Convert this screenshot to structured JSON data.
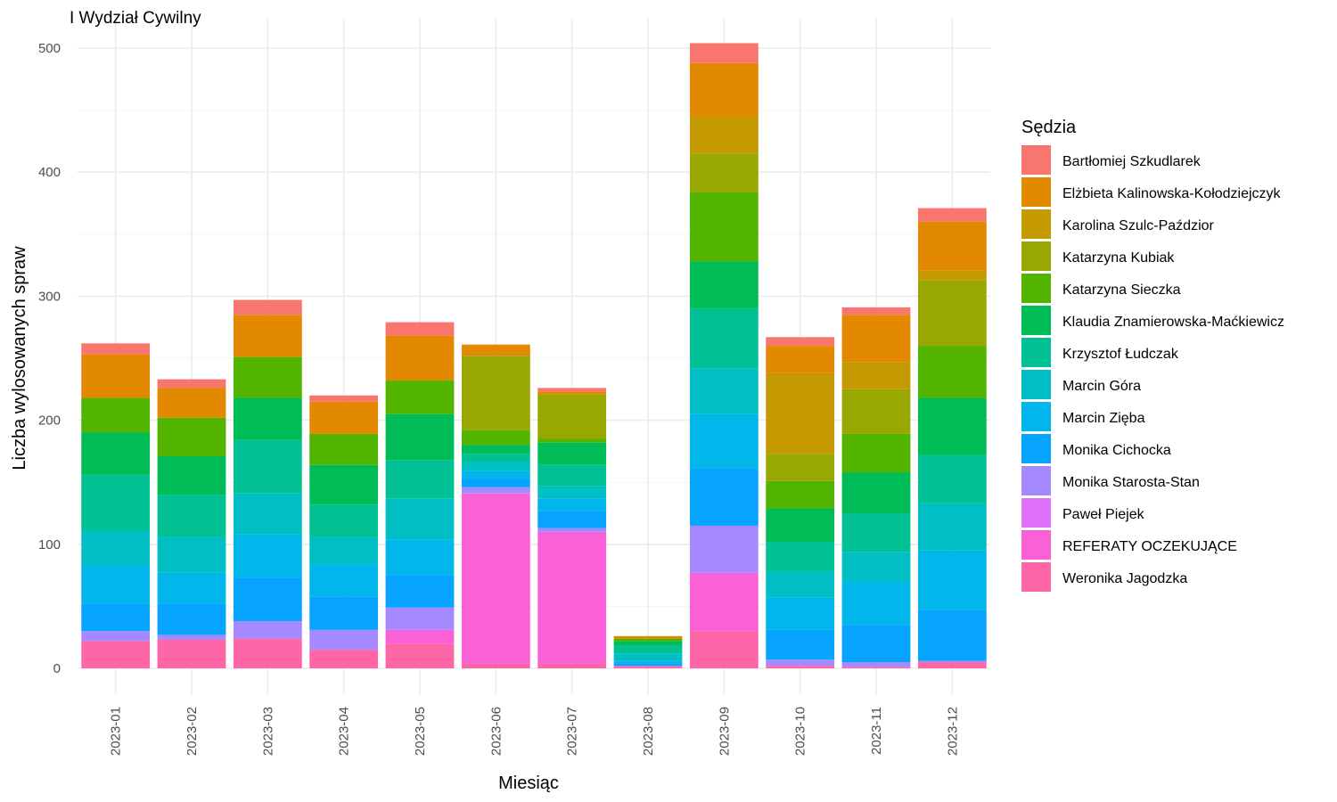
{
  "chart_data": {
    "type": "bar",
    "stacked": true,
    "title": "I Wydział Cywilny",
    "xlabel": "Miesiąc",
    "ylabel": "Liczba wylosowanych spraw",
    "ylim": [
      0,
      520
    ],
    "yticks": [
      0,
      100,
      200,
      300,
      400,
      500
    ],
    "grid": true,
    "legend_title": "Sędzia",
    "legend_position": "right",
    "categories": [
      "2023-01",
      "2023-02",
      "2023-03",
      "2023-04",
      "2023-05",
      "2023-06",
      "2023-07",
      "2023-08",
      "2023-09",
      "2023-10",
      "2023-11",
      "2023-12"
    ],
    "series": [
      {
        "name": "Bartłomiej Szkudlarek",
        "color": "#F8766D",
        "values": [
          9,
          7,
          12,
          5,
          11,
          0,
          3,
          0,
          16,
          7,
          6,
          11
        ]
      },
      {
        "name": "Elżbieta Kalinowska-Kołodziejczyk",
        "color": "#E38900",
        "values": [
          35,
          24,
          34,
          26,
          36,
          9,
          2,
          2,
          43,
          22,
          38,
          39
        ]
      },
      {
        "name": "Karolina Szulc-Paździor",
        "color": "#C49A00",
        "values": [
          0,
          0,
          0,
          0,
          0,
          0,
          0,
          0,
          30,
          65,
          22,
          8
        ]
      },
      {
        "name": "Katarzyna Kubiak",
        "color": "#99A800",
        "values": [
          0,
          0,
          0,
          0,
          0,
          60,
          36,
          0,
          31,
          22,
          36,
          53
        ]
      },
      {
        "name": "Katarzyna Sieczka",
        "color": "#53B400",
        "values": [
          28,
          31,
          33,
          25,
          27,
          12,
          3,
          2,
          56,
          22,
          31,
          42
        ]
      },
      {
        "name": "Klaudia Znamierowska-Maćkiewicz",
        "color": "#00BC56",
        "values": [
          34,
          31,
          34,
          32,
          37,
          7,
          18,
          4,
          38,
          27,
          33,
          46
        ]
      },
      {
        "name": "Krzysztof Łudczak",
        "color": "#00C094",
        "values": [
          45,
          34,
          43,
          26,
          31,
          7,
          17,
          6,
          48,
          24,
          31,
          39
        ]
      },
      {
        "name": "Marcin Góra",
        "color": "#00BFC4",
        "values": [
          28,
          29,
          33,
          22,
          33,
          7,
          10,
          6,
          37,
          21,
          24,
          38
        ]
      },
      {
        "name": "Marcin Zięba",
        "color": "#00B6EB",
        "values": [
          31,
          25,
          35,
          26,
          29,
          6,
          10,
          2,
          44,
          26,
          35,
          48
        ]
      },
      {
        "name": "Monika Cichocka",
        "color": "#06A4FF",
        "values": [
          22,
          25,
          35,
          27,
          26,
          7,
          14,
          2,
          46,
          24,
          30,
          41
        ]
      },
      {
        "name": "Monika Starosta-Stan",
        "color": "#A58AFF",
        "values": [
          8,
          4,
          14,
          16,
          18,
          5,
          3,
          0,
          38,
          5,
          4,
          1
        ]
      },
      {
        "name": "Paweł Piejek",
        "color": "#DF70F8",
        "values": [
          0,
          0,
          0,
          0,
          0,
          0,
          0,
          0,
          0,
          0,
          0,
          0
        ]
      },
      {
        "name": "REFERATY OCZEKUJĄCE",
        "color": "#FB61D7",
        "values": [
          0,
          0,
          0,
          0,
          11,
          137,
          106,
          0,
          47,
          0,
          0,
          0
        ]
      },
      {
        "name": "Weronika Jagodzka",
        "color": "#FF66A8",
        "values": [
          22,
          23,
          24,
          15,
          20,
          4,
          4,
          2,
          30,
          2,
          1,
          5
        ]
      }
    ]
  }
}
